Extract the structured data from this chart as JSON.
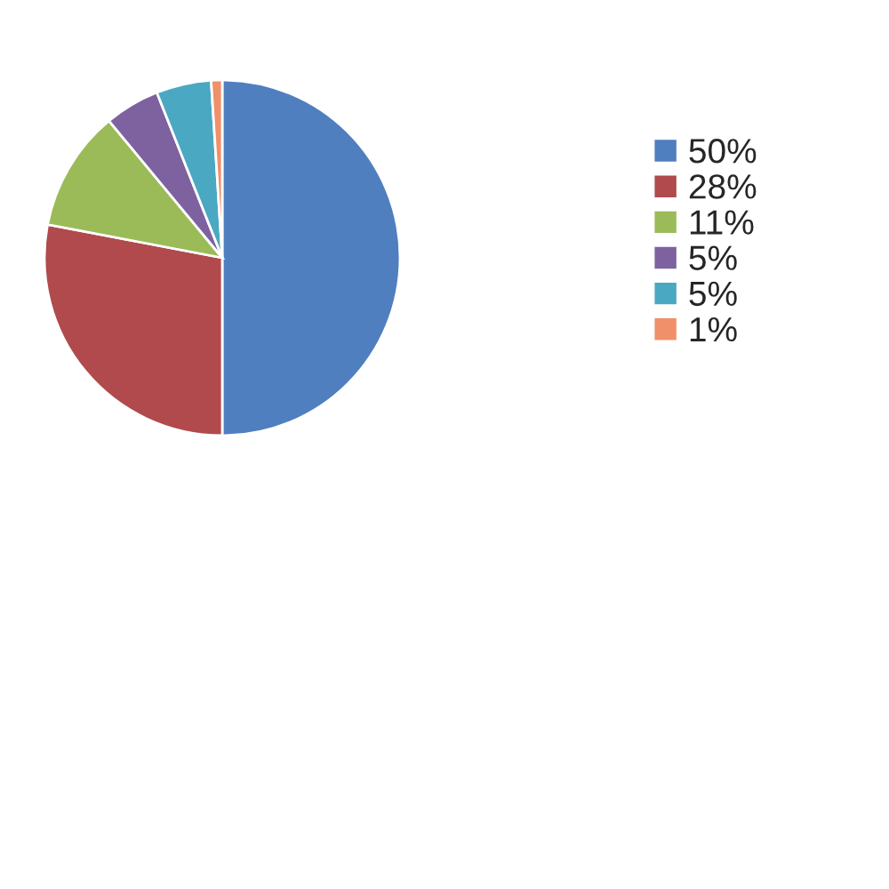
{
  "chart_data": {
    "type": "pie",
    "categories": [
      "50%",
      "28%",
      "11%",
      "5%",
      "5%",
      "1%"
    ],
    "values": [
      50,
      28,
      11,
      5,
      5,
      1
    ],
    "colors": [
      "#4f7fbf",
      "#b04a4c",
      "#9bbb59",
      "#7e62a0",
      "#4aa8c2",
      "#f0906a"
    ],
    "legend": "top right"
  }
}
